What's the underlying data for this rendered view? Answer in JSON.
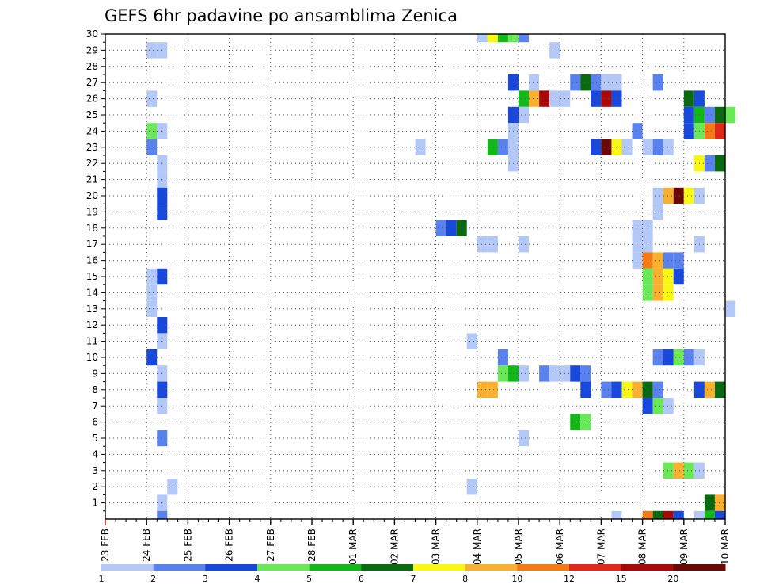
{
  "chart_data": {
    "type": "heatmap",
    "title": "GEFS 6hr padavine po ansamblima Zenica",
    "x_tick_labels": [
      "23 FEB",
      "24 FEB",
      "25 FEB",
      "26 FEB",
      "27 FEB",
      "28 FEB",
      "01 MAR",
      "02 MAR",
      "03 MAR",
      "04 MAR",
      "05 MAR",
      "06 MAR",
      "07 MAR",
      "08 MAR",
      "09 MAR",
      "10 MAR"
    ],
    "y_tick_labels": [
      "1",
      "2",
      "3",
      "4",
      "5",
      "6",
      "7",
      "8",
      "9",
      "10",
      "11",
      "12",
      "13",
      "14",
      "15",
      "16",
      "17",
      "18",
      "19",
      "20",
      "21",
      "22",
      "23",
      "24",
      "25",
      "26",
      "27",
      "28",
      "29",
      "30"
    ],
    "x_range": [
      0,
      15
    ],
    "steps_per_day": 4,
    "y_range": [
      0,
      30
    ],
    "grid": true,
    "legend_position": "bottom",
    "legend_labels": [
      "1",
      "2",
      "3",
      "4",
      "5",
      "6",
      "7",
      "8",
      "10",
      "12",
      "15",
      "20"
    ],
    "legend_colors": [
      "#b4c8f8",
      "#5a82ee",
      "#1848dc",
      "#6ae858",
      "#12b818",
      "#0a6a10",
      "#f8f814",
      "#f8b030",
      "#f47a14",
      "#e02818",
      "#a80808",
      "#6a0808"
    ],
    "cells": [
      {
        "member": 30,
        "step": [
          36,
          37,
          38,
          39,
          40
        ],
        "level": [
          1,
          7,
          5,
          4,
          2
        ]
      },
      {
        "member": 29,
        "step": [
          4,
          5,
          43
        ],
        "level": [
          1,
          1,
          1
        ]
      },
      {
        "member": 27,
        "step": [
          39,
          41,
          45,
          46,
          47,
          48,
          49,
          53
        ],
        "level": [
          3,
          1,
          2,
          6,
          2,
          1,
          1,
          2
        ]
      },
      {
        "member": 26,
        "step": [
          4,
          40,
          41,
          42,
          43,
          44,
          47,
          48,
          49,
          56,
          57
        ],
        "level": [
          1,
          5,
          8,
          11,
          1,
          1,
          3,
          11,
          3,
          6,
          3
        ]
      },
      {
        "member": 25,
        "step": [
          39,
          40,
          56,
          57,
          58,
          59,
          60
        ],
        "level": [
          3,
          1,
          3,
          5,
          2,
          6,
          4
        ]
      },
      {
        "member": 24,
        "step": [
          4,
          5,
          39,
          51,
          56,
          57,
          58,
          59
        ],
        "level": [
          4,
          1,
          1,
          2,
          3,
          4,
          9,
          10
        ]
      },
      {
        "member": 23,
        "step": [
          4,
          30,
          37,
          38,
          39,
          47,
          48,
          49,
          50,
          52,
          53,
          54
        ],
        "level": [
          2,
          1,
          5,
          2,
          1,
          3,
          12,
          7,
          1,
          1,
          2,
          1
        ]
      },
      {
        "member": 22,
        "step": [
          5,
          39,
          57,
          58,
          59
        ],
        "level": [
          1,
          1,
          7,
          2,
          6
        ]
      },
      {
        "member": 21,
        "step": [
          5
        ],
        "level": [
          1
        ]
      },
      {
        "member": 20,
        "step": [
          5,
          53,
          54,
          55,
          56,
          57
        ],
        "level": [
          3,
          1,
          8,
          12,
          7,
          1
        ]
      },
      {
        "member": 19,
        "step": [
          5,
          53
        ],
        "level": [
          3,
          1
        ]
      },
      {
        "member": 18,
        "step": [
          32,
          33,
          34,
          51,
          52
        ],
        "level": [
          2,
          3,
          6,
          1,
          1
        ]
      },
      {
        "member": 17,
        "step": [
          36,
          37,
          40,
          51,
          52,
          57
        ],
        "level": [
          1,
          1,
          1,
          1,
          1,
          1
        ]
      },
      {
        "member": 16,
        "step": [
          51,
          52,
          53,
          54,
          55
        ],
        "level": [
          1,
          9,
          8,
          2,
          2
        ]
      },
      {
        "member": 15,
        "step": [
          4,
          5,
          52,
          53,
          54,
          55
        ],
        "level": [
          1,
          3,
          4,
          8,
          7,
          3
        ]
      },
      {
        "member": 14,
        "step": [
          4,
          52,
          53,
          54
        ],
        "level": [
          1,
          4,
          8,
          7
        ]
      },
      {
        "member": 13,
        "step": [
          4,
          60
        ],
        "level": [
          1,
          1
        ]
      },
      {
        "member": 12,
        "step": [
          5
        ],
        "level": [
          3
        ]
      },
      {
        "member": 11,
        "step": [
          5,
          35
        ],
        "level": [
          1,
          1
        ]
      },
      {
        "member": 10,
        "step": [
          4,
          38,
          53,
          54,
          55,
          56,
          57
        ],
        "level": [
          3,
          2,
          2,
          3,
          4,
          2,
          1
        ]
      },
      {
        "member": 9,
        "step": [
          5,
          38,
          39,
          40,
          42,
          43,
          44,
          45,
          46
        ],
        "level": [
          1,
          4,
          5,
          1,
          2,
          1,
          1,
          3,
          2
        ]
      },
      {
        "member": 8,
        "step": [
          5,
          36,
          37,
          46,
          48,
          49,
          50,
          51,
          52,
          53,
          57,
          58,
          59
        ],
        "level": [
          3,
          8,
          8,
          3,
          2,
          3,
          7,
          8,
          6,
          2,
          3,
          8,
          6
        ]
      },
      {
        "member": 7,
        "step": [
          5,
          52,
          53,
          54
        ],
        "level": [
          1,
          3,
          4,
          1
        ]
      },
      {
        "member": 6,
        "step": [
          45,
          46
        ],
        "level": [
          5,
          4
        ]
      },
      {
        "member": 5,
        "step": [
          5,
          40
        ],
        "level": [
          2,
          1
        ]
      },
      {
        "member": 3,
        "step": [
          54,
          55,
          56,
          57
        ],
        "level": [
          4,
          8,
          4,
          1
        ]
      },
      {
        "member": 2,
        "step": [
          6,
          35
        ],
        "level": [
          1,
          1
        ]
      },
      {
        "member": 1,
        "step": [
          5,
          58,
          59
        ],
        "level": [
          1,
          6,
          8
        ]
      },
      {
        "member": 0,
        "step": [
          5,
          49,
          52,
          53,
          54,
          55,
          57,
          58,
          59
        ],
        "level": [
          2,
          1,
          9,
          6,
          11,
          3,
          1,
          5,
          3
        ]
      }
    ]
  }
}
